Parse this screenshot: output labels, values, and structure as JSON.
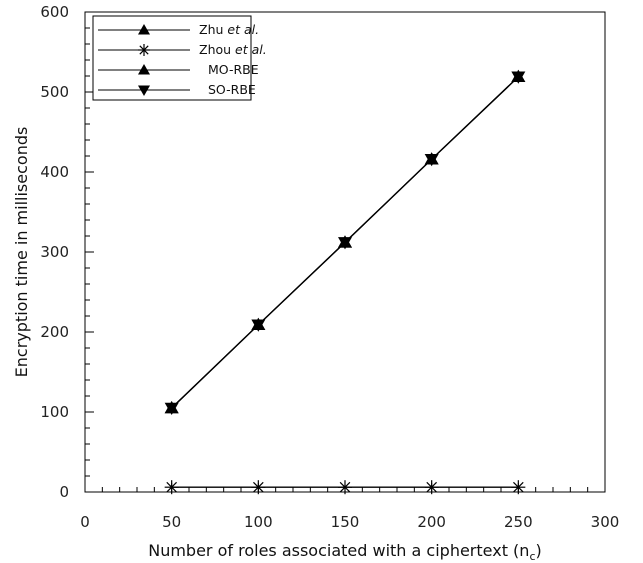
{
  "chart_data": {
    "type": "line",
    "xlabel": "Number of roles associated with a ciphertext (n",
    "xlabel_sub": "c",
    "xlabel_suffix": ")",
    "ylabel": "Encryption time in milliseconds",
    "xlim": [
      0,
      300
    ],
    "ylim": [
      0,
      600
    ],
    "xticks": [
      0,
      50,
      100,
      150,
      200,
      250,
      300
    ],
    "yticks": [
      0,
      100,
      200,
      300,
      400,
      500,
      600
    ],
    "x": [
      50,
      100,
      150,
      200,
      250
    ],
    "grid": false,
    "legend_position": "top-left",
    "series": [
      {
        "name": "Zhu",
        "name_suffix": "et al.",
        "marker": "triangle-up",
        "values": [
          105,
          209,
          312,
          416,
          519
        ]
      },
      {
        "name": "Zhou",
        "name_suffix": "et al.",
        "marker": "asterisk",
        "values": [
          6,
          6,
          6,
          6,
          6
        ]
      },
      {
        "name": "MO-RBE",
        "name_suffix": "",
        "marker": "triangle-up",
        "values": [
          105,
          209,
          312,
          416,
          519
        ]
      },
      {
        "name": "SO-RBE",
        "name_suffix": "",
        "marker": "triangle-down",
        "values": [
          105,
          209,
          312,
          416,
          519
        ]
      }
    ]
  }
}
